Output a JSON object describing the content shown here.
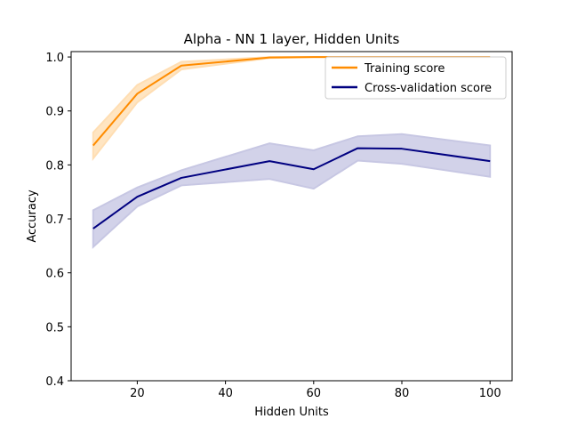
{
  "chart_data": {
    "type": "line",
    "title": "Alpha - NN 1 layer, Hidden Units",
    "xlabel": "Hidden Units",
    "ylabel": "Accuracy",
    "xlim": [
      5,
      105
    ],
    "ylim": [
      0.4,
      1.01
    ],
    "xticks": [
      20,
      40,
      60,
      80,
      100
    ],
    "xtick_labels": [
      "20",
      "40",
      "60",
      "80",
      "100"
    ],
    "yticks": [
      0.4,
      0.5,
      0.6,
      0.7,
      0.8,
      0.9,
      1.0
    ],
    "ytick_labels": [
      "0.4",
      "0.5",
      "0.6",
      "0.7",
      "0.8",
      "0.9",
      "1.0"
    ],
    "grid": false,
    "legend_position": "upper right",
    "x": [
      10,
      20,
      30,
      50,
      60,
      70,
      80,
      100
    ],
    "series": [
      {
        "name": "Training score",
        "color": "#ff8c00",
        "band_color": "#ffdeb3",
        "values": [
          0.836,
          0.932,
          0.984,
          0.999,
          1.0,
          1.0,
          1.0,
          1.0
        ],
        "lower": [
          0.812,
          0.916,
          0.977,
          0.998,
          1.0,
          1.0,
          1.0,
          1.0
        ],
        "upper": [
          0.86,
          0.948,
          0.991,
          1.0,
          1.0,
          1.0,
          1.0,
          1.0
        ]
      },
      {
        "name": "Cross-validation score",
        "color": "#000080",
        "band_color": "#c7c7e3",
        "values": [
          0.682,
          0.741,
          0.776,
          0.807,
          0.792,
          0.831,
          0.83,
          0.807
        ],
        "lower": [
          0.648,
          0.723,
          0.762,
          0.774,
          0.756,
          0.808,
          0.802,
          0.778
        ],
        "upper": [
          0.716,
          0.758,
          0.79,
          0.84,
          0.827,
          0.853,
          0.857,
          0.836
        ]
      }
    ]
  }
}
